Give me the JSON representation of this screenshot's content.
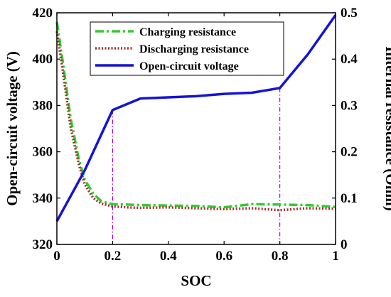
{
  "chart_data": {
    "type": "line",
    "xlabel": "SOC",
    "ylabel_left": "Open-circuit voltage (V)",
    "ylabel_right": "Internal resistance (Ohm)",
    "xlim": [
      0,
      1
    ],
    "ylim_left": [
      320,
      420
    ],
    "ylim_right": [
      0,
      0.5
    ],
    "x_ticks": [
      "0",
      "0.2",
      "0.4",
      "0.6",
      "0.8",
      "1"
    ],
    "y_left_ticks": [
      "320",
      "340",
      "360",
      "380",
      "400",
      "420"
    ],
    "y_right_ticks": [
      "0",
      "0.1",
      "0.2",
      "0.3",
      "0.4",
      "0.5"
    ],
    "grid": false,
    "legend_position": "top-center",
    "reference_lines_x": [
      0.2,
      0.8
    ],
    "series": [
      {
        "name": "Charging resistance",
        "axis": "right",
        "color": "#33cc33",
        "style": "dashdot",
        "x": [
          0,
          0.02,
          0.05,
          0.08,
          0.1,
          0.13,
          0.16,
          0.2,
          0.25,
          0.3,
          0.4,
          0.5,
          0.6,
          0.7,
          0.8,
          0.9,
          1.0
        ],
        "values": [
          0.48,
          0.4,
          0.27,
          0.18,
          0.14,
          0.11,
          0.093,
          0.087,
          0.086,
          0.085,
          0.084,
          0.083,
          0.08,
          0.087,
          0.086,
          0.085,
          0.081
        ]
      },
      {
        "name": "Discharging resistance",
        "axis": "right",
        "color": "#a0302a",
        "style": "dotted",
        "x": [
          0,
          0.02,
          0.05,
          0.08,
          0.1,
          0.13,
          0.16,
          0.2,
          0.25,
          0.3,
          0.4,
          0.5,
          0.6,
          0.7,
          0.8,
          0.9,
          1.0
        ],
        "values": [
          0.46,
          0.38,
          0.25,
          0.17,
          0.13,
          0.1,
          0.088,
          0.082,
          0.08,
          0.079,
          0.08,
          0.078,
          0.076,
          0.078,
          0.074,
          0.078,
          0.077
        ]
      },
      {
        "name": "Open-circuit voltage",
        "axis": "left",
        "color": "#1414d4",
        "style": "solid",
        "x": [
          0,
          0.1,
          0.2,
          0.3,
          0.4,
          0.5,
          0.6,
          0.7,
          0.8,
          0.9,
          1.0
        ],
        "values": [
          330,
          352,
          378,
          383,
          383.5,
          384,
          385,
          385.5,
          387.5,
          402,
          419
        ]
      }
    ]
  }
}
